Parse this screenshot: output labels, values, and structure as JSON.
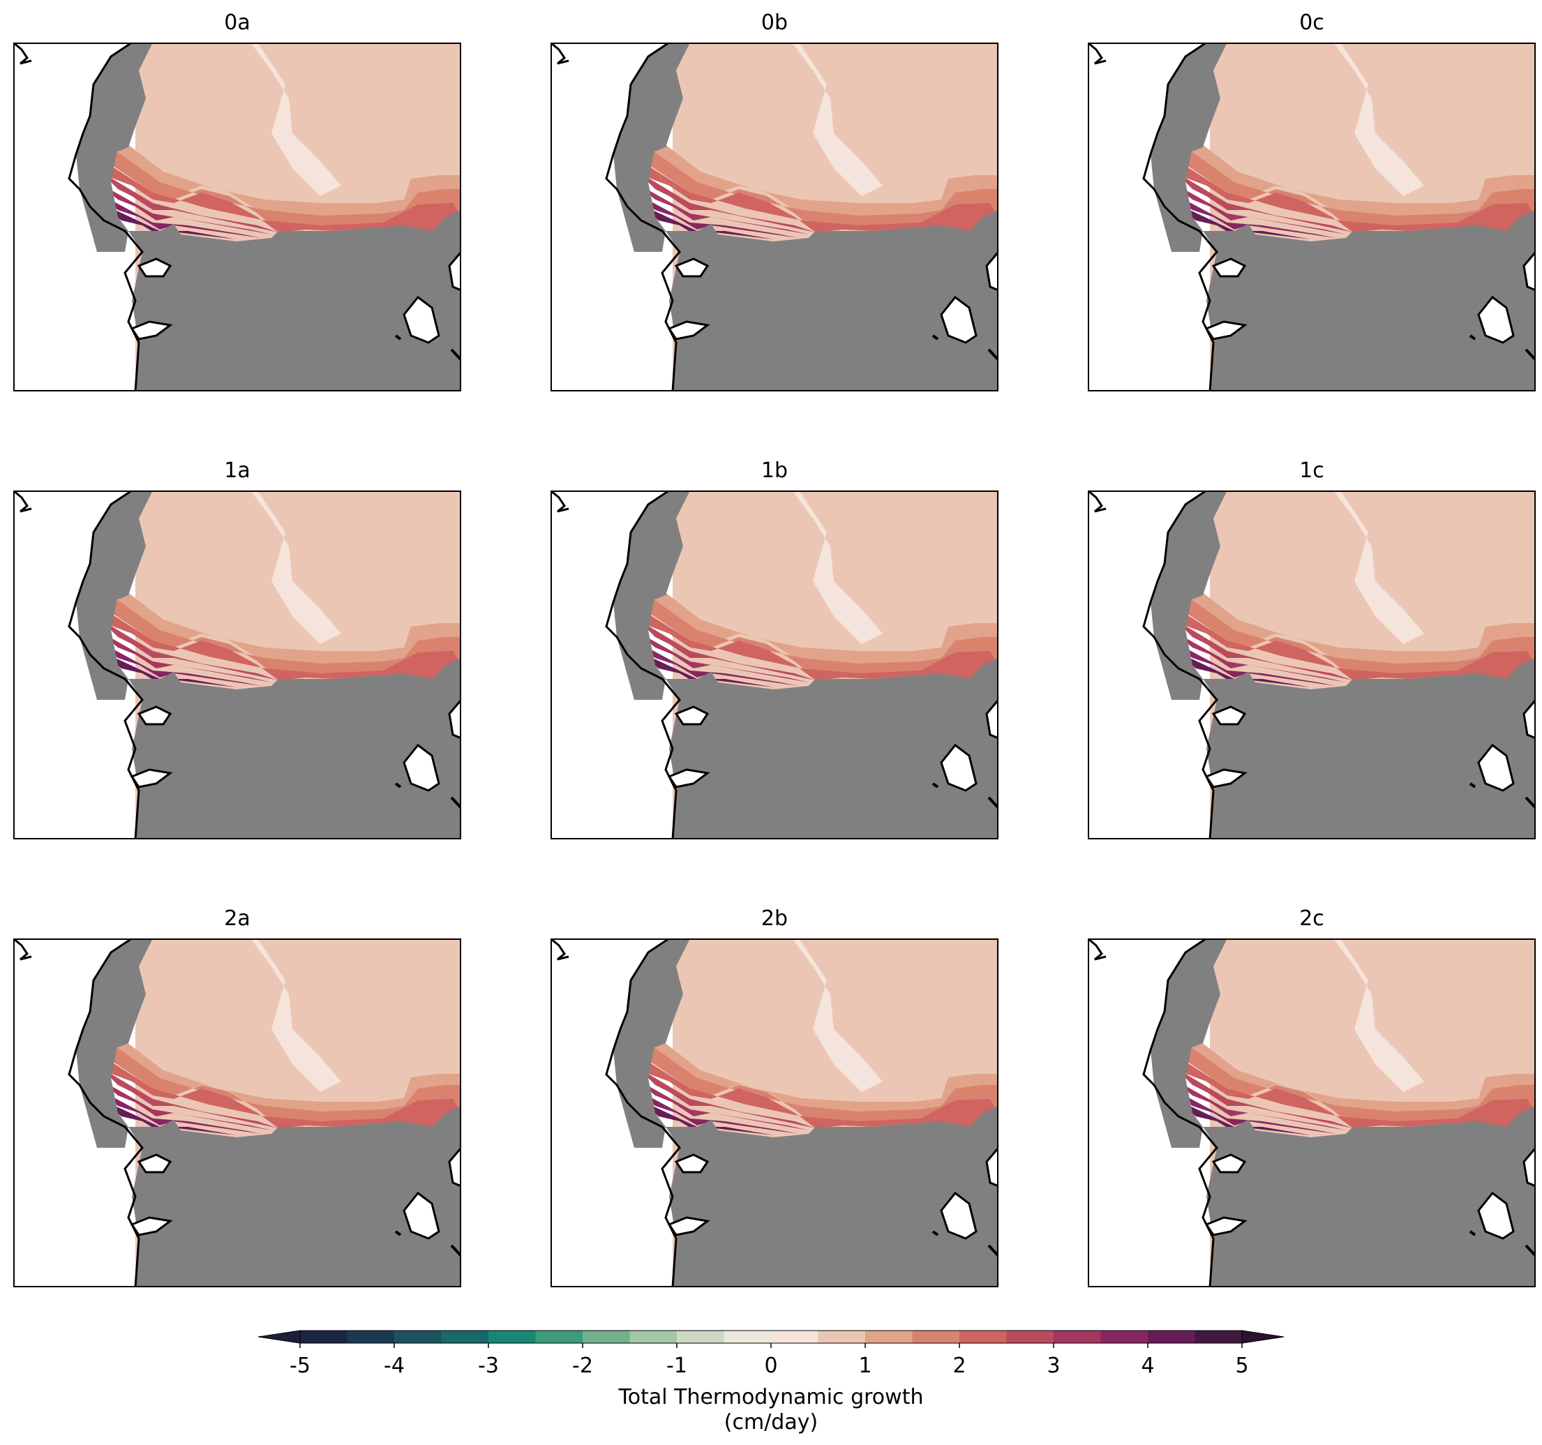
{
  "panels": [
    {
      "title": "0a",
      "variant": 0
    },
    {
      "title": "0b",
      "variant": 1
    },
    {
      "title": "0c",
      "variant": 2
    },
    {
      "title": "1a",
      "variant": 0
    },
    {
      "title": "1b",
      "variant": 1
    },
    {
      "title": "1c",
      "variant": 2
    },
    {
      "title": "2a",
      "variant": 3
    },
    {
      "title": "2b",
      "variant": 4
    },
    {
      "title": "2c",
      "variant": 5
    }
  ],
  "colorbar": {
    "label_line1": "Total Thermodynamic growth",
    "label_line2": "(cm/day)",
    "min": -5,
    "max": 5,
    "step": 0.5,
    "extend": "both",
    "tick_values": [
      -5,
      -4,
      -3,
      -2,
      -1,
      0,
      1,
      2,
      3,
      4,
      5
    ],
    "tick_labels": [
      "-5",
      "-4",
      "-3",
      "-2",
      "-1",
      "0",
      "1",
      "2",
      "3",
      "4",
      "5"
    ],
    "colors": [
      "#1b2440",
      "#1b3a52",
      "#1b525e",
      "#19686a",
      "#178874",
      "#3c9b78",
      "#73b08c",
      "#a3c7a6",
      "#cdd9c4",
      "#ece8dd",
      "#f5e4dc",
      "#ecc6b4",
      "#e2a38b",
      "#d9836f",
      "#cf6460",
      "#ba4a5e",
      "#a4375f",
      "#872662",
      "#661d57",
      "#42183f"
    ],
    "under_color": "#1a1f3a",
    "over_color": "#2e1230"
  },
  "colors": {
    "land": "#808080",
    "coast": "#000000",
    "background": "#ffffff"
  }
}
